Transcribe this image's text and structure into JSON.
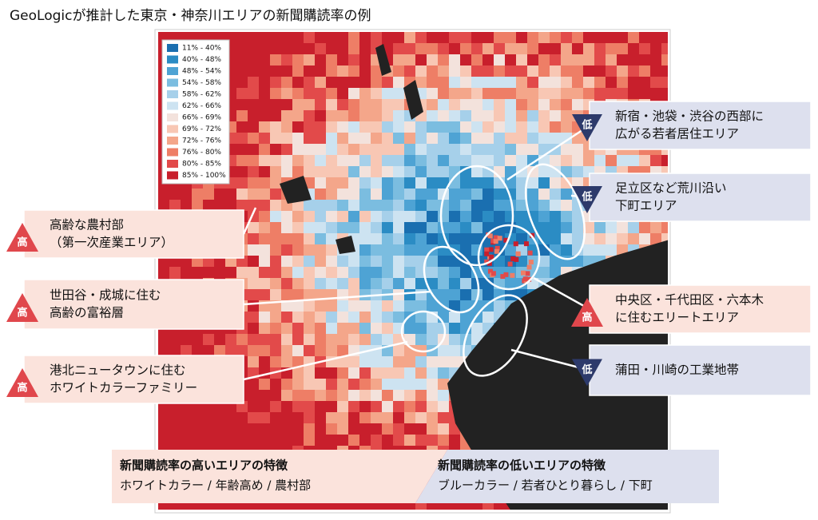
{
  "title": "GeoLogicが推計した東京・神奈川エリアの新聞購読率の例",
  "legend": [
    {
      "label": "11% -  40%",
      "color": "#1a6fb0"
    },
    {
      "label": "40% -  48%",
      "color": "#2b8cc4"
    },
    {
      "label": "48% -  54%",
      "color": "#4ea3d4"
    },
    {
      "label": "54% -  58%",
      "color": "#7bbde0"
    },
    {
      "label": "58% -  62%",
      "color": "#a6d0ea"
    },
    {
      "label": "62% -  66%",
      "color": "#cde3f1"
    },
    {
      "label": "66% -  69%",
      "color": "#f3e2dc"
    },
    {
      "label": "69% -  72%",
      "color": "#f8c7b4"
    },
    {
      "label": "72% -  76%",
      "color": "#f4a68a"
    },
    {
      "label": "76% -  80%",
      "color": "#ee7e66"
    },
    {
      "label": "80% -  85%",
      "color": "#e24a4a"
    },
    {
      "label": "85% - 100%",
      "color": "#c81f2c"
    }
  ],
  "callouts": [
    {
      "badge": "高",
      "lines": [
        "高齢な農村部",
        "（第一次産業エリア）"
      ]
    },
    {
      "badge": "高",
      "lines": [
        "世田谷・成城に住む",
        "高齢の富裕層"
      ]
    },
    {
      "badge": "高",
      "lines": [
        "港北ニュータウンに住む",
        "ホワイトカラーファミリー"
      ]
    },
    {
      "badge": "低",
      "lines": [
        "新宿・池袋・渋谷の西部に",
        "広がる若者居住エリア"
      ]
    },
    {
      "badge": "低",
      "lines": [
        "足立区など荒川沿い",
        "下町エリア"
      ]
    },
    {
      "badge": "高",
      "lines": [
        "中央区・千代田区・六本木",
        "に住むエリートエリア"
      ]
    },
    {
      "badge": "低",
      "lines": [
        "蒲田・川崎の工業地帯"
      ]
    }
  ],
  "summary": [
    {
      "title": "新聞購読率の高いエリアの特徴",
      "text": "ホワイトカラー / 年齢高め / 農村部"
    },
    {
      "title": "新聞購読率の低いエリアの特徴",
      "text": "ブルーカラー / 若者ひとり暮らし / 下町"
    }
  ]
}
